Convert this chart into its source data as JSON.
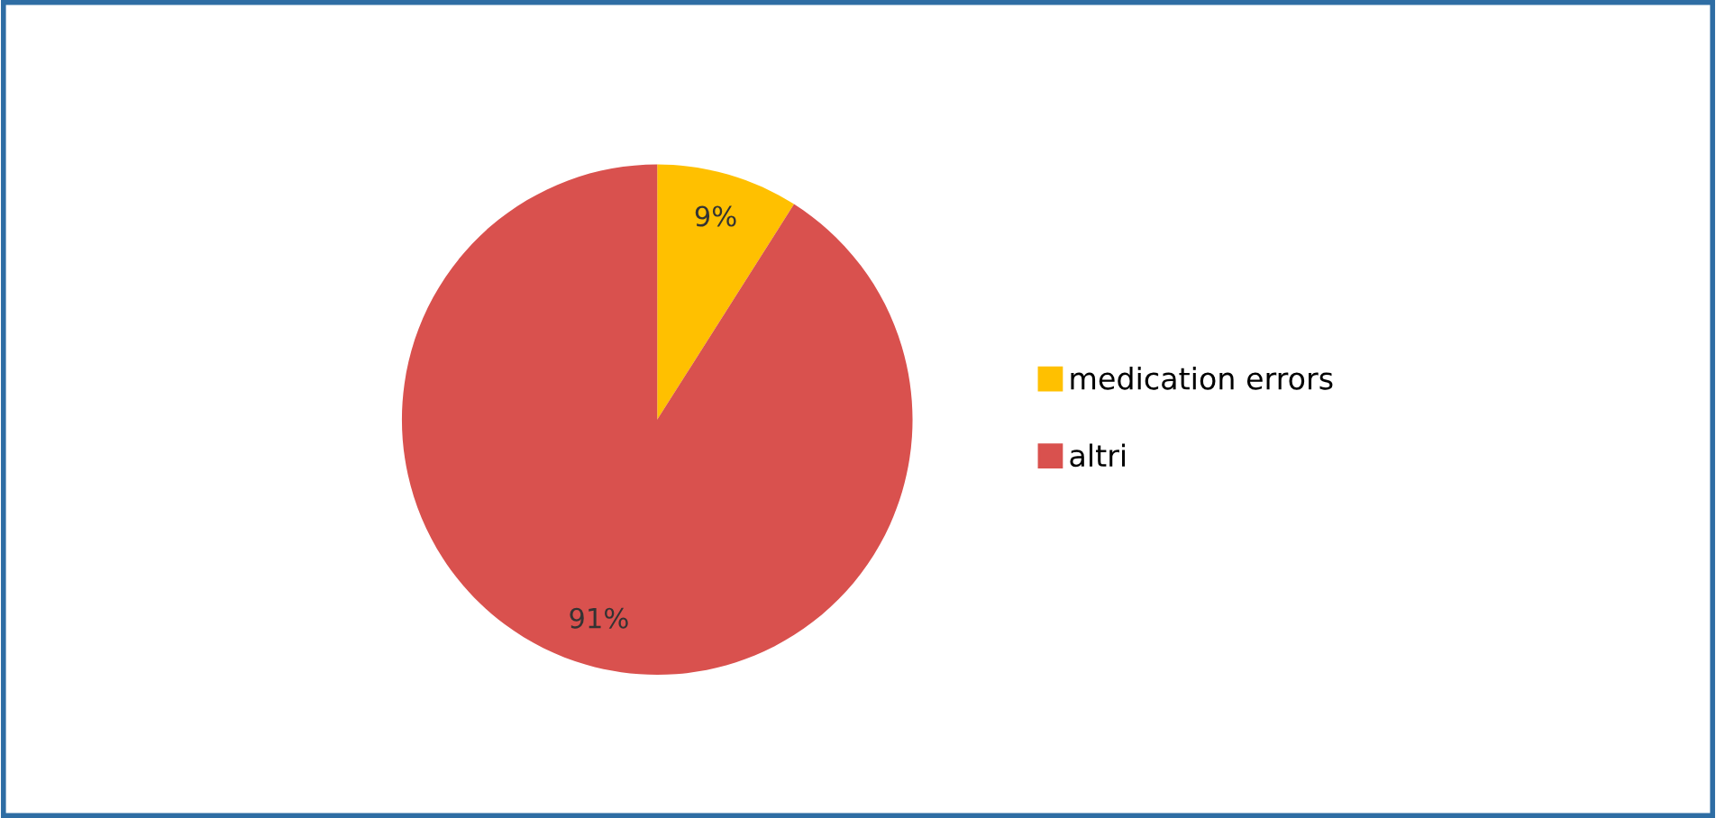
{
  "chart_data": {
    "type": "pie",
    "categories": [
      "medication errors",
      "altri"
    ],
    "values": [
      9,
      91
    ],
    "colors": [
      "#ffc000",
      "#d9514e"
    ],
    "value_labels": [
      "9%",
      "91%"
    ],
    "legend": "right"
  }
}
